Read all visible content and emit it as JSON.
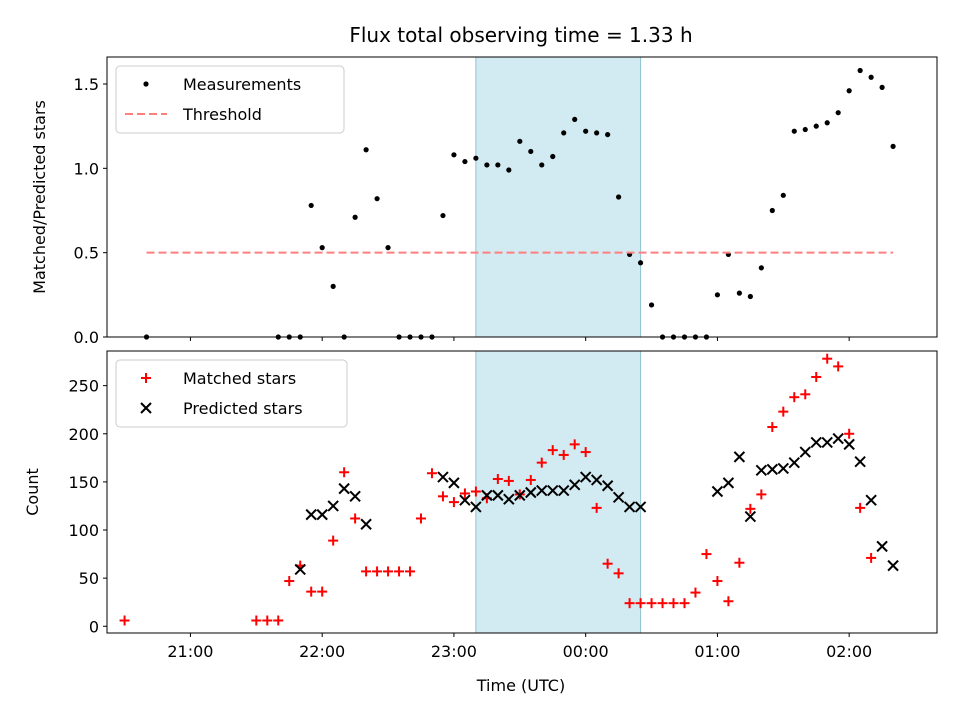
{
  "chart_data": [
    {
      "type": "scatter",
      "title": "Flux total observing time = 1.33 h",
      "ylabel": "Matched/Predicted stars",
      "xlabel": "",
      "xlim": [
        "20:22",
        "02:40"
      ],
      "ylim": [
        0,
        1.66
      ],
      "yticks": [
        0.0,
        0.5,
        1.0,
        1.5
      ],
      "ytick_labels": [
        "0.0",
        "0.5",
        "1.0",
        "1.5"
      ],
      "xtick_labels": [],
      "grid": false,
      "legend": "top-left",
      "shaded_span": [
        "23:10",
        "00:25"
      ],
      "series": [
        {
          "name": "Measurements",
          "marker": "dot",
          "color": "#000000",
          "points": [
            [
              "20:40",
              0.0
            ],
            [
              "21:40",
              0.0
            ],
            [
              "21:45",
              0.0
            ],
            [
              "21:50",
              0.0
            ],
            [
              "21:55",
              0.78
            ],
            [
              "22:00",
              0.53
            ],
            [
              "22:05",
              0.3
            ],
            [
              "22:10",
              0.0
            ],
            [
              "22:15",
              0.71
            ],
            [
              "22:20",
              1.11
            ],
            [
              "22:25",
              0.82
            ],
            [
              "22:30",
              0.53
            ],
            [
              "22:35",
              0.0
            ],
            [
              "22:40",
              0.0
            ],
            [
              "22:45",
              0.0
            ],
            [
              "22:50",
              0.0
            ],
            [
              "22:55",
              0.72
            ],
            [
              "23:00",
              1.08
            ],
            [
              "23:05",
              1.04
            ],
            [
              "23:10",
              1.06
            ],
            [
              "23:15",
              1.02
            ],
            [
              "23:20",
              1.02
            ],
            [
              "23:25",
              0.99
            ],
            [
              "23:30",
              1.16
            ],
            [
              "23:35",
              1.1
            ],
            [
              "23:40",
              1.02
            ],
            [
              "23:45",
              1.07
            ],
            [
              "23:50",
              1.21
            ],
            [
              "23:55",
              1.29
            ],
            [
              "00:00",
              1.22
            ],
            [
              "00:05",
              1.21
            ],
            [
              "00:10",
              1.2
            ],
            [
              "00:15",
              0.83
            ],
            [
              "00:20",
              0.49
            ],
            [
              "00:25",
              0.44
            ],
            [
              "00:30",
              0.19
            ],
            [
              "00:35",
              0.0
            ],
            [
              "00:40",
              0.0
            ],
            [
              "00:45",
              0.0
            ],
            [
              "00:50",
              0.0
            ],
            [
              "00:55",
              0.0
            ],
            [
              "01:00",
              0.25
            ],
            [
              "01:05",
              0.49
            ],
            [
              "01:10",
              0.26
            ],
            [
              "01:15",
              0.24
            ],
            [
              "01:20",
              0.41
            ],
            [
              "01:25",
              0.75
            ],
            [
              "01:30",
              0.84
            ],
            [
              "01:35",
              1.22
            ],
            [
              "01:40",
              1.23
            ],
            [
              "01:45",
              1.25
            ],
            [
              "01:50",
              1.27
            ],
            [
              "01:55",
              1.33
            ],
            [
              "02:00",
              1.46
            ],
            [
              "02:05",
              1.58
            ],
            [
              "02:10",
              1.54
            ],
            [
              "02:15",
              1.48
            ],
            [
              "02:20",
              1.13
            ]
          ]
        },
        {
          "name": "Threshold",
          "marker": "dashed-line",
          "color": "#ff7f7f",
          "points": [
            [
              "20:40",
              0.5
            ],
            [
              "02:20",
              0.5
            ]
          ]
        }
      ]
    },
    {
      "type": "scatter",
      "title": "",
      "ylabel": "Count",
      "xlabel": "Time (UTC)",
      "xlim": [
        "20:22",
        "02:40"
      ],
      "ylim": [
        -7,
        286
      ],
      "yticks": [
        0,
        50,
        100,
        150,
        200,
        250
      ],
      "ytick_labels": [
        "0",
        "50",
        "100",
        "150",
        "200",
        "250"
      ],
      "xticks": [
        "21:00",
        "22:00",
        "23:00",
        "00:00",
        "01:00",
        "02:00"
      ],
      "xtick_labels": [
        "21:00",
        "22:00",
        "23:00",
        "00:00",
        "01:00",
        "02:00"
      ],
      "grid": false,
      "legend": "top-left",
      "shaded_span": [
        "23:10",
        "00:25"
      ],
      "series": [
        {
          "name": "Matched stars",
          "marker": "plus",
          "color": "#ff0000",
          "points": [
            [
              "20:30",
              6
            ],
            [
              "21:30",
              6
            ],
            [
              "21:35",
              6
            ],
            [
              "21:40",
              6
            ],
            [
              "21:45",
              47
            ],
            [
              "21:50",
              63
            ],
            [
              "21:55",
              36
            ],
            [
              "22:00",
              36
            ],
            [
              "22:05",
              89
            ],
            [
              "22:10",
              160
            ],
            [
              "22:15",
              112
            ],
            [
              "22:20",
              57
            ],
            [
              "22:25",
              57
            ],
            [
              "22:30",
              57
            ],
            [
              "22:35",
              57
            ],
            [
              "22:40",
              57
            ],
            [
              "22:45",
              112
            ],
            [
              "22:50",
              159
            ],
            [
              "22:55",
              135
            ],
            [
              "23:00",
              129
            ],
            [
              "23:05",
              138
            ],
            [
              "23:10",
              140
            ],
            [
              "23:15",
              133
            ],
            [
              "23:20",
              153
            ],
            [
              "23:25",
              151
            ],
            [
              "23:30",
              137
            ],
            [
              "23:35",
              152
            ],
            [
              "23:40",
              170
            ],
            [
              "23:45",
              183
            ],
            [
              "23:50",
              178
            ],
            [
              "23:55",
              189
            ],
            [
              "00:00",
              181
            ],
            [
              "00:05",
              123
            ],
            [
              "00:10",
              65
            ],
            [
              "00:15",
              55
            ],
            [
              "00:20",
              24
            ],
            [
              "00:25",
              24
            ],
            [
              "00:30",
              24
            ],
            [
              "00:35",
              24
            ],
            [
              "00:40",
              24
            ],
            [
              "00:45",
              24
            ],
            [
              "00:50",
              35
            ],
            [
              "00:55",
              75
            ],
            [
              "01:00",
              47
            ],
            [
              "01:05",
              26
            ],
            [
              "01:10",
              66
            ],
            [
              "01:15",
              122
            ],
            [
              "01:20",
              137
            ],
            [
              "01:25",
              207
            ],
            [
              "01:30",
              223
            ],
            [
              "01:35",
              238
            ],
            [
              "01:40",
              241
            ],
            [
              "01:45",
              259
            ],
            [
              "01:50",
              278
            ],
            [
              "01:55",
              270
            ],
            [
              "02:00",
              200
            ],
            [
              "02:05",
              123
            ],
            [
              "02:10",
              71
            ]
          ]
        },
        {
          "name": "Predicted stars",
          "marker": "x",
          "color": "#000000",
          "points": [
            [
              "21:50",
              59
            ],
            [
              "21:55",
              116
            ],
            [
              "22:00",
              116
            ],
            [
              "22:05",
              125
            ],
            [
              "22:10",
              143
            ],
            [
              "22:15",
              135
            ],
            [
              "22:20",
              106
            ],
            [
              "22:55",
              155
            ],
            [
              "23:00",
              149
            ],
            [
              "23:05",
              131
            ],
            [
              "23:10",
              124
            ],
            [
              "23:15",
              136
            ],
            [
              "23:20",
              136
            ],
            [
              "23:25",
              132
            ],
            [
              "23:30",
              136
            ],
            [
              "23:35",
              139
            ],
            [
              "23:40",
              141
            ],
            [
              "23:45",
              141
            ],
            [
              "23:50",
              141
            ],
            [
              "23:55",
              147
            ],
            [
              "00:00",
              155
            ],
            [
              "00:05",
              152
            ],
            [
              "00:10",
              146
            ],
            [
              "00:15",
              134
            ],
            [
              "00:20",
              124
            ],
            [
              "00:25",
              124
            ],
            [
              "01:00",
              140
            ],
            [
              "01:05",
              149
            ],
            [
              "01:10",
              176
            ],
            [
              "01:15",
              114
            ],
            [
              "01:20",
              162
            ],
            [
              "01:25",
              163
            ],
            [
              "01:30",
              164
            ],
            [
              "01:35",
              170
            ],
            [
              "01:40",
              181
            ],
            [
              "01:45",
              191
            ],
            [
              "01:50",
              191
            ],
            [
              "01:55",
              195
            ],
            [
              "02:00",
              189
            ],
            [
              "02:05",
              171
            ],
            [
              "02:10",
              131
            ],
            [
              "02:15",
              83
            ],
            [
              "02:20",
              63
            ]
          ]
        }
      ]
    }
  ],
  "colors": {
    "shade": "#add8e6",
    "threshold": "#ff7f7f",
    "matched": "#ff0000",
    "predicted": "#000000",
    "measurements": "#000000"
  }
}
